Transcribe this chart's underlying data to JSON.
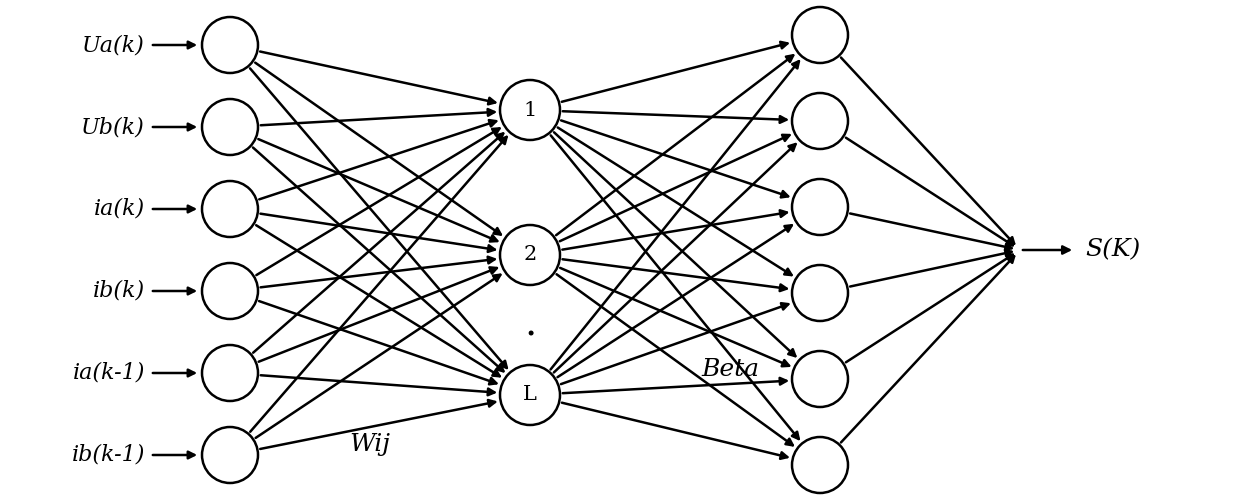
{
  "input_labels": [
    "Ua(k)",
    "Ub(k)",
    "ia(k)",
    "ib(k)",
    "ia(k-1)",
    "ib(k-1)"
  ],
  "hidden_labels": [
    "1",
    "2",
    "L"
  ],
  "output_count": 6,
  "output_label": "S(K)",
  "wij_label": "Wij",
  "beta_label": "Beta",
  "bg_color": "#ffffff",
  "node_color": "#ffffff",
  "edge_color": "#000000",
  "text_color": "#000000",
  "font_size": 16,
  "label_font_size": 16
}
